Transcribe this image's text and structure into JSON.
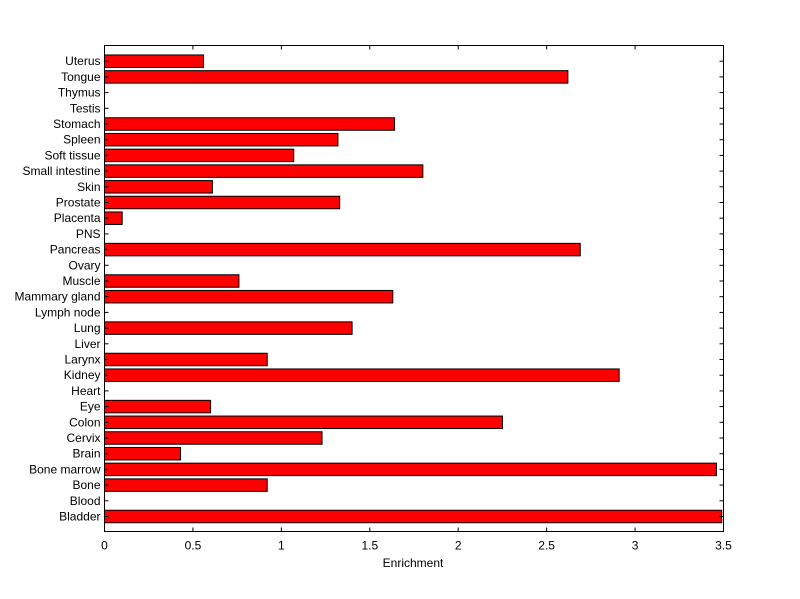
{
  "chart_data": {
    "type": "bar",
    "orientation": "horizontal",
    "title": "",
    "xlabel": "Enrichment",
    "ylabel": "",
    "xlim": [
      0,
      3.5
    ],
    "xticks": [
      "0",
      "0.5",
      "1",
      "1.5",
      "2",
      "2.5",
      "3",
      "3.5"
    ],
    "grid": false,
    "bar_color": "#ff0000",
    "edge_color": "#000000",
    "categories": [
      "Bladder",
      "Blood",
      "Bone",
      "Bone marrow",
      "Brain",
      "Cervix",
      "Colon",
      "Eye",
      "Heart",
      "Kidney",
      "Larynx",
      "Liver",
      "Lung",
      "Lymph node",
      "Mammary gland",
      "Muscle",
      "Ovary",
      "Pancreas",
      "PNS",
      "Placenta",
      "Prostate",
      "Skin",
      "Small intestine",
      "Soft tissue",
      "Spleen",
      "Stomach",
      "Testis",
      "Thymus",
      "Tongue",
      "Uterus"
    ],
    "values": [
      3.49,
      0,
      0.92,
      3.46,
      0.43,
      1.23,
      2.25,
      0.6,
      0,
      2.91,
      0.92,
      0,
      1.4,
      0,
      1.63,
      0.76,
      0,
      2.69,
      0,
      0.1,
      1.33,
      0.61,
      1.8,
      1.07,
      1.32,
      1.64,
      0,
      0,
      2.62,
      0.56
    ]
  }
}
